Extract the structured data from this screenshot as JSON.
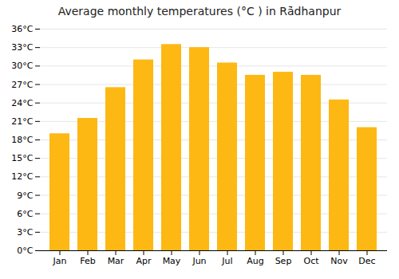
{
  "chart_data": {
    "type": "bar",
    "title": "Average monthly temperatures (°C ) in Rā̇dhanpur",
    "categories": [
      "Jan",
      "Feb",
      "Mar",
      "Apr",
      "May",
      "Jun",
      "Jul",
      "Aug",
      "Sep",
      "Oct",
      "Nov",
      "Dec"
    ],
    "values": [
      19.0,
      21.5,
      26.5,
      31.0,
      33.5,
      33.0,
      30.5,
      28.5,
      29.0,
      28.5,
      24.5,
      20.0
    ],
    "color": "#FDB813",
    "ylim": [
      0,
      36
    ],
    "yticks": [
      {
        "value": 0,
        "label": "0°C"
      },
      {
        "value": 3,
        "label": "3°C"
      },
      {
        "value": 6,
        "label": "6°C"
      },
      {
        "value": 9,
        "label": "9°C"
      },
      {
        "value": 12,
        "label": "12°C"
      },
      {
        "value": 15,
        "label": "15°C"
      },
      {
        "value": 18,
        "label": "18°C"
      },
      {
        "value": 21,
        "label": "21°C"
      },
      {
        "value": 24,
        "label": "24°C"
      },
      {
        "value": 27,
        "label": "27°C"
      },
      {
        "value": 30,
        "label": "30°C"
      },
      {
        "value": 33,
        "label": "33°C"
      },
      {
        "value": 36,
        "label": "36°C"
      }
    ],
    "grid": true
  }
}
